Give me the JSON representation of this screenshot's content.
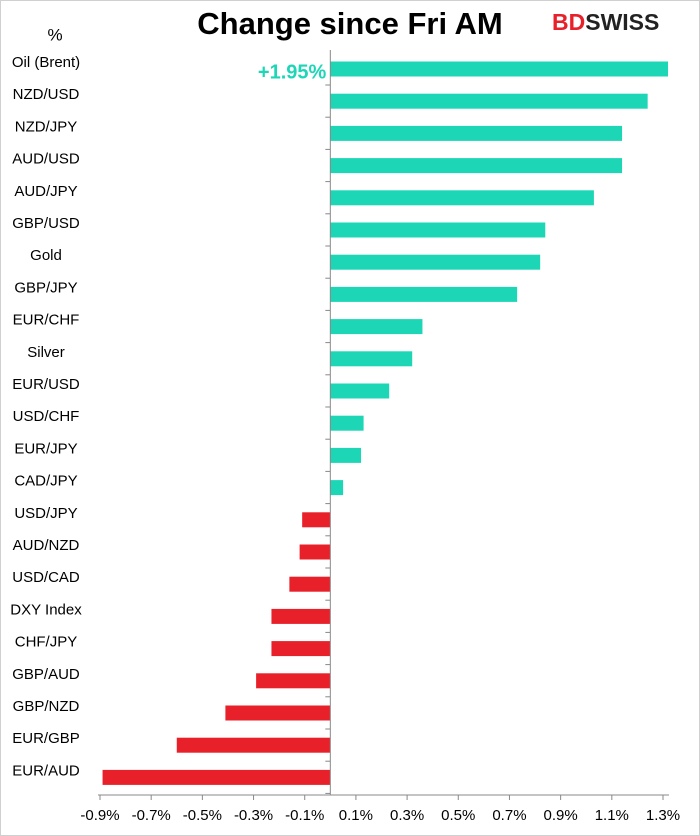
{
  "chart_data": {
    "type": "barh",
    "title": "Change since Fri AM",
    "unit_label": "%",
    "logo": [
      "BD",
      "SWISS"
    ],
    "categories": [
      "Oil (Brent)",
      "NZD/USD",
      "NZD/JPY",
      "AUD/USD",
      "AUD/JPY",
      "GBP/USD",
      "Gold",
      "GBP/JPY",
      "EUR/CHF",
      "Silver",
      "EUR/USD",
      "USD/CHF",
      "EUR/JPY",
      "CAD/JPY",
      "USD/JPY",
      "AUD/NZD",
      "USD/CAD",
      "DXY Index",
      "CHF/JPY",
      "GBP/AUD",
      "GBP/NZD",
      "EUR/GBP",
      "EUR/AUD"
    ],
    "values": [
      1.95,
      1.24,
      1.14,
      1.14,
      1.03,
      0.84,
      0.82,
      0.73,
      0.36,
      0.32,
      0.23,
      0.13,
      0.12,
      0.05,
      -0.11,
      -0.12,
      -0.16,
      -0.23,
      -0.23,
      -0.29,
      -0.41,
      -0.6,
      -0.89
    ],
    "value_labels": [
      "+1.95%",
      null,
      null,
      null,
      null,
      null,
      null,
      null,
      null,
      null,
      null,
      null,
      null,
      null,
      null,
      null,
      null,
      null,
      null,
      null,
      null,
      null,
      null
    ],
    "positive_color": "#1dd6b6",
    "negative_color": "#e8202a",
    "xlim": [
      -0.9,
      1.3
    ],
    "xticks": [
      {
        "value": -0.9,
        "label": "-0.9%"
      },
      {
        "value": -0.7,
        "label": "-0.7%"
      },
      {
        "value": -0.5,
        "label": "-0.5%"
      },
      {
        "value": -0.3,
        "label": "-0.3%"
      },
      {
        "value": -0.1,
        "label": "-0.1%"
      },
      {
        "value": 0.1,
        "label": "0.1%"
      },
      {
        "value": 0.3,
        "label": "0.3%"
      },
      {
        "value": 0.5,
        "label": "0.5%"
      },
      {
        "value": 0.7,
        "label": "0.7%"
      },
      {
        "value": 0.9,
        "label": "0.9%"
      },
      {
        "value": 1.1,
        "label": "1.1%"
      },
      {
        "value": 1.3,
        "label": "1.3%"
      }
    ],
    "grid": false
  }
}
